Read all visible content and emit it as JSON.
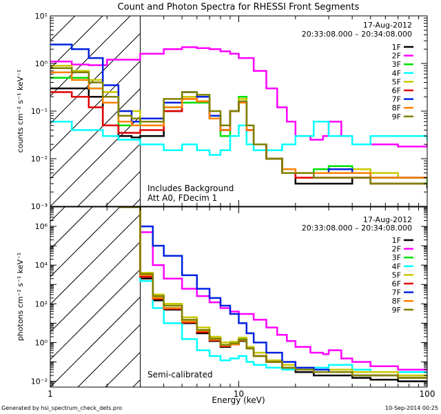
{
  "chart_data": [
    {
      "type": "line",
      "panel": "top",
      "title": "Count and Photon Spectra for RHESSI Front Segments",
      "xlabel": "Energy (keV)",
      "ylabel": "counts cm⁻² s⁻¹ keV⁻¹",
      "xscale": "log",
      "yscale": "log",
      "xlim": [
        1,
        100
      ],
      "ylim": [
        0.001,
        10
      ],
      "x_tick_labels": [
        "1",
        "10",
        "100"
      ],
      "y_tick_labels": [
        "10⁻³",
        "10⁻²",
        "10⁻¹",
        "10⁰",
        "10¹"
      ],
      "date": "17-Aug-2012",
      "time_range": "20:33:08.000 – 20:34:08.000",
      "annotations": [
        "Includes Background",
        "Att A0, FDecim 1"
      ],
      "hatched_region_keV": [
        1,
        3
      ],
      "series": [
        {
          "name": "1F",
          "color": "#000000",
          "x": [
            1,
            1.3,
            1.6,
            1.9,
            2.3,
            2.7,
            3,
            4,
            5,
            6,
            7,
            8,
            9,
            10,
            11,
            12,
            14,
            17,
            20,
            25,
            30,
            40,
            50,
            70,
            100
          ],
          "y": [
            0.3,
            0.3,
            0.2,
            0.05,
            0.03,
            0.028,
            0.03,
            0.1,
            0.15,
            0.16,
            0.08,
            0.05,
            0.1,
            0.15,
            0.04,
            0.02,
            0.01,
            0.005,
            0.003,
            0.003,
            0.003,
            0.004,
            0.003,
            0.003,
            0.0025
          ]
        },
        {
          "name": "2F",
          "color": "#ff00ff",
          "x": [
            1,
            1.3,
            1.6,
            2,
            3,
            4,
            5,
            6,
            7,
            8,
            9,
            10,
            12,
            14,
            16,
            18,
            20,
            24,
            28,
            30,
            35,
            40,
            50,
            70,
            100
          ],
          "y": [
            1.1,
            0.95,
            0.92,
            1.2,
            1.6,
            2.0,
            2.2,
            2.1,
            2.0,
            1.8,
            1.6,
            1.3,
            0.7,
            0.3,
            0.12,
            0.06,
            0.03,
            0.025,
            0.03,
            0.06,
            0.03,
            0.02,
            0.02,
            0.018,
            0.02
          ]
        },
        {
          "name": "3F",
          "color": "#00e000",
          "x": [
            1,
            1.3,
            1.6,
            1.9,
            2.3,
            2.7,
            3,
            4,
            5,
            6,
            7,
            8,
            9,
            10,
            11,
            12,
            14,
            17,
            20,
            25,
            30,
            40,
            50,
            70,
            100
          ],
          "y": [
            0.5,
            0.5,
            0.3,
            0.15,
            0.05,
            0.05,
            0.06,
            0.12,
            0.15,
            0.15,
            0.07,
            0.03,
            0.1,
            0.2,
            0.05,
            0.02,
            0.01,
            0.005,
            0.005,
            0.006,
            0.007,
            0.005,
            0.004,
            0.004,
            0.003
          ]
        },
        {
          "name": "4F",
          "color": "#00ffff",
          "x": [
            1,
            1.3,
            1.6,
            1.9,
            2.3,
            2.7,
            3,
            4,
            5,
            6,
            7,
            8,
            9,
            10,
            11,
            12,
            14,
            17,
            20,
            25,
            30,
            40,
            50,
            70,
            100
          ],
          "y": [
            0.06,
            0.04,
            0.04,
            0.03,
            0.025,
            0.025,
            0.02,
            0.015,
            0.02,
            0.015,
            0.012,
            0.015,
            0.03,
            0.05,
            0.02,
            0.015,
            0.015,
            0.02,
            0.03,
            0.06,
            0.03,
            0.02,
            0.03,
            0.03,
            0.025
          ]
        },
        {
          "name": "5F",
          "color": "#c8c800",
          "x": [
            1,
            1.3,
            1.6,
            1.9,
            2.3,
            2.7,
            3,
            4,
            5,
            6,
            7,
            8,
            9,
            10,
            11,
            12,
            14,
            17,
            20,
            25,
            30,
            40,
            50,
            70,
            100
          ],
          "y": [
            0.9,
            0.7,
            0.45,
            0.25,
            0.1,
            0.1,
            0.07,
            0.15,
            0.2,
            0.16,
            0.07,
            0.04,
            0.1,
            0.18,
            0.05,
            0.02,
            0.01,
            0.006,
            0.005,
            0.005,
            0.005,
            0.006,
            0.005,
            0.004,
            0.004
          ]
        },
        {
          "name": "6F",
          "color": "#e00000",
          "x": [
            1,
            1.3,
            1.6,
            1.9,
            2.3,
            2.7,
            3,
            4,
            5,
            6,
            7,
            8,
            9,
            10,
            11,
            12,
            14,
            17,
            20,
            25,
            30,
            40,
            50,
            70,
            100
          ],
          "y": [
            0.25,
            0.2,
            0.12,
            0.05,
            0.035,
            0.035,
            0.04,
            0.1,
            0.18,
            0.16,
            0.07,
            0.04,
            0.1,
            0.15,
            0.04,
            0.02,
            0.01,
            0.005,
            0.004,
            0.004,
            0.004,
            0.004,
            0.003,
            0.003,
            0.003
          ]
        },
        {
          "name": "7F",
          "color": "#0020e0",
          "x": [
            1,
            1.3,
            1.6,
            1.9,
            2.3,
            2.7,
            3,
            4,
            5,
            6,
            7,
            8,
            9,
            10,
            11,
            12,
            14,
            17,
            20,
            25,
            30,
            40,
            50,
            70,
            100
          ],
          "y": [
            2.5,
            2.0,
            1.3,
            0.35,
            0.1,
            0.06,
            0.07,
            0.15,
            0.25,
            0.2,
            0.08,
            0.04,
            0.1,
            0.15,
            0.04,
            0.02,
            0.01,
            0.006,
            0.005,
            0.005,
            0.006,
            0.005,
            0.004,
            0.004,
            0.004
          ]
        },
        {
          "name": "8F",
          "color": "#ff8000",
          "x": [
            1,
            1.3,
            1.6,
            1.9,
            2.3,
            2.7,
            3,
            4,
            5,
            6,
            7,
            8,
            9,
            10,
            11,
            12,
            14,
            17,
            20,
            25,
            30,
            40,
            50,
            70,
            100
          ],
          "y": [
            0.65,
            0.45,
            0.3,
            0.15,
            0.06,
            0.05,
            0.05,
            0.12,
            0.18,
            0.16,
            0.07,
            0.04,
            0.1,
            0.15,
            0.04,
            0.02,
            0.01,
            0.006,
            0.005,
            0.005,
            0.005,
            0.005,
            0.004,
            0.004,
            0.004
          ]
        },
        {
          "name": "9F",
          "color": "#808000",
          "x": [
            1,
            1.3,
            1.6,
            1.9,
            2.3,
            2.7,
            3,
            4,
            5,
            6,
            7,
            8,
            9,
            10,
            11,
            12,
            14,
            17,
            20,
            25,
            30,
            40,
            50,
            70,
            100
          ],
          "y": [
            0.8,
            0.65,
            0.4,
            0.2,
            0.08,
            0.07,
            0.06,
            0.18,
            0.25,
            0.22,
            0.1,
            0.05,
            0.1,
            0.16,
            0.05,
            0.02,
            0.01,
            0.005,
            0.005,
            0.004,
            0.004,
            0.004,
            0.003,
            0.003,
            0.003
          ]
        }
      ]
    },
    {
      "type": "line",
      "panel": "bottom",
      "xlabel": "Energy (keV)",
      "ylabel": "photons cm⁻² s⁻¹ keV⁻¹",
      "xscale": "log",
      "yscale": "log",
      "xlim": [
        1,
        100
      ],
      "ylim": [
        0.005,
        10000000
      ],
      "x_tick_labels": [
        "1",
        "10",
        "100"
      ],
      "y_tick_labels": [
        "10⁻²",
        "10⁰",
        "10²",
        "10⁴",
        "10⁶"
      ],
      "date": "17-Aug-2012",
      "time_range": "20:33:08.000 – 20:34:08.000",
      "annotations": [
        "Semi-calibrated"
      ],
      "hatched_region_keV": [
        1,
        3
      ],
      "series": [
        {
          "name": "1F",
          "color": "#000000",
          "x": [
            2.3,
            2.7,
            3,
            3.5,
            4,
            5,
            6,
            7,
            8,
            9,
            10,
            11,
            12,
            14,
            17,
            20,
            25,
            30,
            40,
            50,
            70,
            100
          ],
          "y": [
            10000000,
            10000000,
            2000,
            150,
            50,
            10,
            3,
            1.2,
            0.6,
            0.8,
            1.2,
            0.5,
            0.2,
            0.1,
            0.05,
            0.03,
            0.02,
            0.02,
            0.015,
            0.012,
            0.01,
            0.01
          ]
        },
        {
          "name": "2F",
          "color": "#ff00ff",
          "x": [
            2.3,
            2.7,
            3,
            3.5,
            4,
            5,
            6,
            7,
            8,
            9,
            10,
            12,
            14,
            16,
            18,
            20,
            24,
            28,
            30,
            35,
            40,
            50,
            70,
            100
          ],
          "y": [
            10000000,
            10000000,
            500000,
            10000,
            2000,
            600,
            250,
            120,
            60,
            40,
            30,
            15,
            6,
            2.5,
            1.2,
            0.6,
            0.3,
            0.25,
            0.4,
            0.15,
            0.1,
            0.06,
            0.04,
            0.04
          ]
        },
        {
          "name": "3F",
          "color": "#00e000",
          "x": [
            2.3,
            2.7,
            3,
            3.5,
            4,
            5,
            6,
            7,
            8,
            9,
            10,
            11,
            12,
            14,
            17,
            20,
            25,
            30,
            40,
            50,
            70,
            100
          ],
          "y": [
            10000000,
            10000000,
            3000,
            200,
            60,
            12,
            4,
            1.5,
            0.7,
            0.9,
            1.5,
            0.5,
            0.2,
            0.1,
            0.05,
            0.04,
            0.03,
            0.03,
            0.02,
            0.02,
            0.015,
            0.015
          ]
        },
        {
          "name": "4F",
          "color": "#00ffff",
          "x": [
            2.3,
            2.7,
            3,
            3.5,
            4,
            5,
            6,
            7,
            8,
            9,
            10,
            11,
            12,
            14,
            17,
            20,
            25,
            30,
            40,
            50,
            70,
            100
          ],
          "y": [
            10000000,
            10000000,
            1500,
            60,
            10,
            1.5,
            0.4,
            0.2,
            0.12,
            0.15,
            0.2,
            0.1,
            0.07,
            0.05,
            0.04,
            0.05,
            0.05,
            0.07,
            0.04,
            0.03,
            0.03,
            0.02
          ]
        },
        {
          "name": "5F",
          "color": "#c8c800",
          "x": [
            2.3,
            2.7,
            3,
            3.5,
            4,
            5,
            6,
            7,
            8,
            9,
            10,
            11,
            12,
            14,
            17,
            20,
            25,
            30,
            40,
            50,
            70,
            100
          ],
          "y": [
            10000000,
            10000000,
            4000,
            300,
            100,
            20,
            6,
            2,
            1,
            1.1,
            1.8,
            0.6,
            0.3,
            0.12,
            0.07,
            0.05,
            0.04,
            0.04,
            0.03,
            0.03,
            0.02,
            0.02
          ]
        },
        {
          "name": "6F",
          "color": "#e00000",
          "x": [
            2.3,
            2.7,
            3,
            3.5,
            4,
            5,
            6,
            7,
            8,
            9,
            10,
            11,
            12,
            14,
            17,
            20,
            25,
            30,
            40,
            50,
            70,
            100
          ],
          "y": [
            10000000,
            10000000,
            2500,
            180,
            55,
            11,
            3.5,
            1.3,
            0.65,
            0.8,
            1.3,
            0.5,
            0.2,
            0.1,
            0.05,
            0.04,
            0.03,
            0.03,
            0.02,
            0.02,
            0.015,
            0.015
          ]
        },
        {
          "name": "7F",
          "color": "#0020e0",
          "x": [
            2.3,
            2.7,
            3,
            3.5,
            4,
            5,
            6,
            7,
            8,
            9,
            10,
            11,
            12,
            14,
            17,
            20,
            25,
            30,
            40,
            50,
            70,
            100
          ],
          "y": [
            10000000,
            10000000,
            1000000,
            100000,
            30000,
            3000,
            600,
            200,
            80,
            30,
            10,
            3,
            1,
            0.3,
            0.1,
            0.05,
            0.04,
            0.03,
            0.02,
            0.02,
            0.015,
            0.015
          ]
        },
        {
          "name": "8F",
          "color": "#ff8000",
          "x": [
            2.3,
            2.7,
            3,
            3.5,
            4,
            5,
            6,
            7,
            8,
            9,
            10,
            11,
            12,
            14,
            17,
            20,
            25,
            30,
            40,
            50,
            70,
            100
          ],
          "y": [
            10000000,
            10000000,
            3000,
            200,
            60,
            12,
            4,
            1.4,
            0.7,
            0.8,
            1.3,
            0.5,
            0.2,
            0.1,
            0.05,
            0.04,
            0.03,
            0.03,
            0.02,
            0.02,
            0.015,
            0.015
          ]
        },
        {
          "name": "9F",
          "color": "#808000",
          "x": [
            2.3,
            2.7,
            3,
            3.5,
            4,
            5,
            6,
            7,
            8,
            9,
            10,
            11,
            12,
            14,
            17,
            20,
            25,
            30,
            40,
            50,
            70,
            100
          ],
          "y": [
            10000000,
            10000000,
            3500,
            250,
            80,
            15,
            4.5,
            1.6,
            0.75,
            0.9,
            1.4,
            0.5,
            0.2,
            0.1,
            0.05,
            0.04,
            0.03,
            0.03,
            0.02,
            0.02,
            0.015,
            0.015
          ]
        }
      ]
    }
  ],
  "footer": {
    "generated_by": "Generated by hsi_spectrum_check_dets.pro",
    "timestamp": "10-Sep-2014 00:25"
  }
}
